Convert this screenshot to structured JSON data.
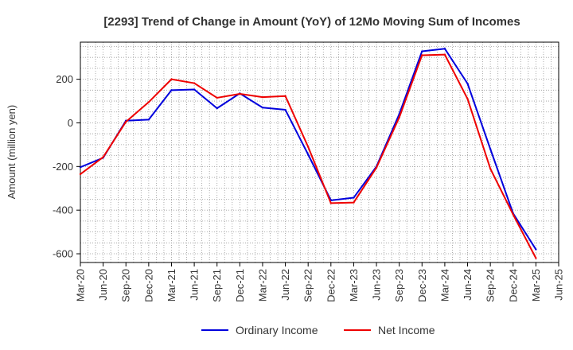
{
  "chart_data": {
    "type": "line",
    "title": "[2293]  Trend of Change in Amount (YoY) of 12Mo Moving Sum of Incomes",
    "xlabel": "",
    "ylabel": "Amount (million yen)",
    "ylim": [
      -640,
      370
    ],
    "yticks": [
      200,
      0,
      -200,
      -400,
      -600
    ],
    "grid": true,
    "legend_position": "bottom",
    "categories": [
      "Mar-20",
      "Jun-20",
      "Sep-20",
      "Dec-20",
      "Mar-21",
      "Jun-21",
      "Sep-21",
      "Dec-21",
      "Mar-22",
      "Jun-22",
      "Sep-22",
      "Dec-22",
      "Mar-23",
      "Jun-23",
      "Sep-23",
      "Dec-23",
      "Mar-24",
      "Jun-24",
      "Sep-24",
      "Dec-24",
      "Mar-25",
      "Jun-25"
    ],
    "series": [
      {
        "name": "Ordinary Income",
        "color": "#0000dd",
        "values": [
          -203,
          -160,
          10,
          15,
          150,
          153,
          67,
          135,
          70,
          60,
          -145,
          -355,
          -343,
          -200,
          40,
          328,
          340,
          180,
          -120,
          -415,
          -580,
          null
        ]
      },
      {
        "name": "Net Income",
        "color": "#ee0000",
        "values": [
          -235,
          -157,
          5,
          95,
          200,
          182,
          115,
          133,
          118,
          123,
          -110,
          -368,
          -365,
          -205,
          25,
          310,
          313,
          110,
          -210,
          -420,
          -620,
          null
        ]
      }
    ]
  }
}
